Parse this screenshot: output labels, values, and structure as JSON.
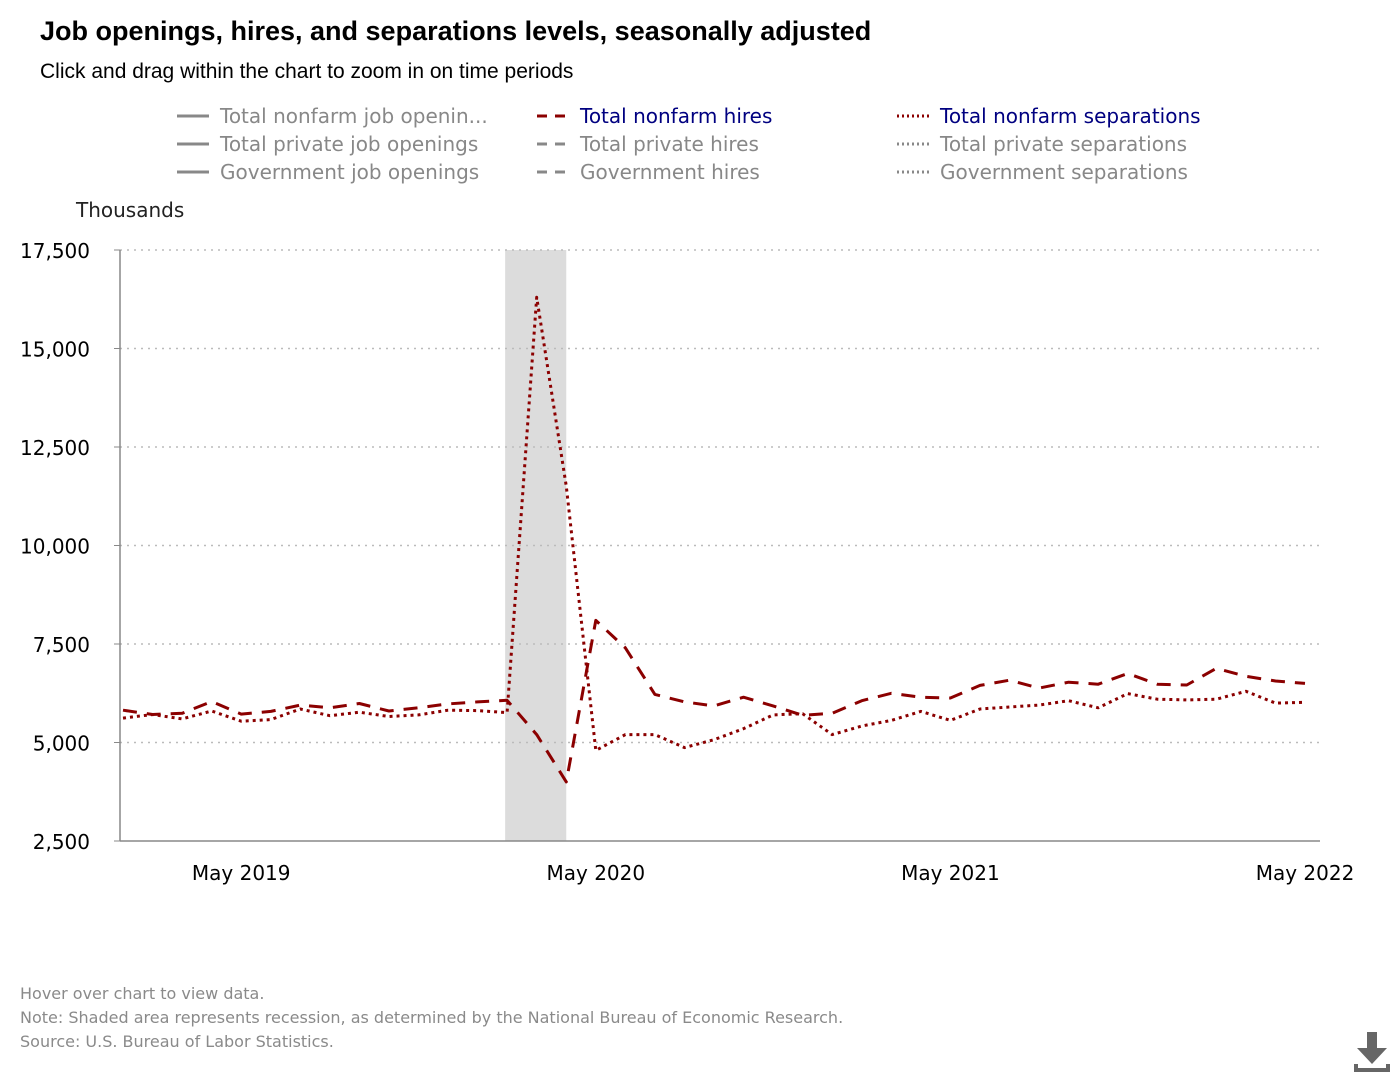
{
  "title": "Job openings, hires, and separations levels, seasonally adjusted",
  "subtitle": "Click and drag within the chart to zoom in on time periods",
  "legend": {
    "items": [
      {
        "label": "Total nonfarm job openin...",
        "style": "solid",
        "active": false
      },
      {
        "label": "Total nonfarm hires",
        "style": "dashed",
        "active": true
      },
      {
        "label": "Total nonfarm separations",
        "style": "dotted",
        "active": true
      },
      {
        "label": "Total private job openings",
        "style": "solid",
        "active": false
      },
      {
        "label": "Total private hires",
        "style": "dashed",
        "active": false
      },
      {
        "label": "Total private separations",
        "style": "dotted",
        "active": false
      },
      {
        "label": "Government job openings",
        "style": "solid",
        "active": false
      },
      {
        "label": "Government hires",
        "style": "dashed",
        "active": false
      },
      {
        "label": "Government separations",
        "style": "dotted",
        "active": false
      }
    ]
  },
  "y_unit": "Thousands",
  "footnotes": {
    "hover": "Hover over chart to view data.",
    "note": "Note: Shaded area represents recession, as determined by the National Bureau of Economic Research.",
    "source": "Source: U.S. Bureau of Labor Statistics."
  },
  "colors": {
    "series": "#8b0000",
    "legend_active_text": "#000080",
    "legend_inactive": "#888888",
    "recession": "#dcdcdc",
    "grid": "#bbbbbb"
  },
  "icons": {
    "download": "download-icon"
  },
  "chart_data": {
    "type": "line",
    "x": [
      "2019-01",
      "2019-02",
      "2019-03",
      "2019-04",
      "2019-05",
      "2019-06",
      "2019-07",
      "2019-08",
      "2019-09",
      "2019-10",
      "2019-11",
      "2019-12",
      "2020-01",
      "2020-02",
      "2020-03",
      "2020-04",
      "2020-05",
      "2020-06",
      "2020-07",
      "2020-08",
      "2020-09",
      "2020-10",
      "2020-11",
      "2020-12",
      "2021-01",
      "2021-02",
      "2021-03",
      "2021-04",
      "2021-05",
      "2021-06",
      "2021-07",
      "2021-08",
      "2021-09",
      "2021-10",
      "2021-11",
      "2021-12",
      "2022-01",
      "2022-02",
      "2022-03",
      "2022-04",
      "2022-05"
    ],
    "x_tick_labels": [
      "May 2019",
      "May 2020",
      "May 2021",
      "May 2022"
    ],
    "x_tick_dates": [
      "2019-05",
      "2020-05",
      "2021-05",
      "2022-05"
    ],
    "y_ticks": [
      "2,500",
      "5,000",
      "7,500",
      "10,000",
      "12,500",
      "15,000",
      "17,500"
    ],
    "ylim": [
      2500,
      17500
    ],
    "ylabel": "Thousands",
    "grid": "horizontal dotted",
    "recession": {
      "start": "2020-02",
      "end": "2020-04"
    },
    "series": [
      {
        "name": "Total nonfarm hires",
        "dash": "dashed",
        "values": [
          5820,
          5710,
          5740,
          6040,
          5720,
          5790,
          5950,
          5880,
          5990,
          5800,
          5880,
          5980,
          6030,
          6070,
          5200,
          4000,
          8100,
          7400,
          6220,
          6030,
          5930,
          6150,
          5930,
          5690,
          5740,
          6060,
          6250,
          6150,
          6130,
          6450,
          6580,
          6380,
          6530,
          6480,
          6750,
          6480,
          6460,
          6880,
          6680,
          6560,
          6500
        ]
      },
      {
        "name": "Total nonfarm separations",
        "dash": "dotted",
        "values": [
          5620,
          5710,
          5600,
          5800,
          5540,
          5580,
          5850,
          5680,
          5770,
          5660,
          5700,
          5820,
          5810,
          5760,
          16300,
          11500,
          4800,
          5200,
          5200,
          4870,
          5070,
          5350,
          5700,
          5730,
          5200,
          5420,
          5560,
          5790,
          5560,
          5850,
          5900,
          5950,
          6060,
          5880,
          6240,
          6100,
          6080,
          6100,
          6300,
          6000,
          6020
        ]
      }
    ]
  }
}
